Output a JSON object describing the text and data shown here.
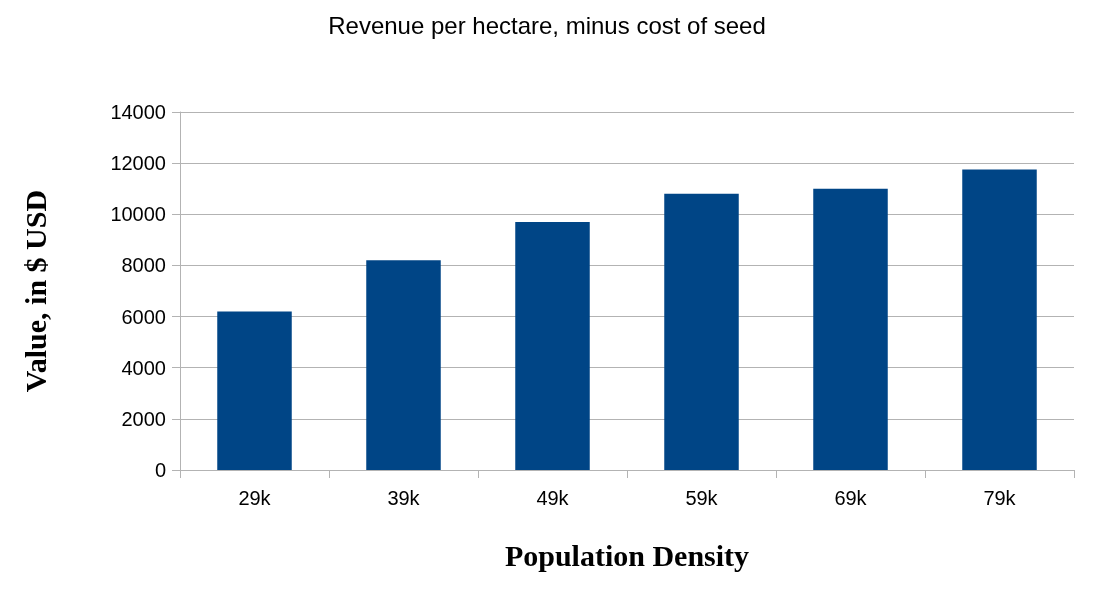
{
  "chart_data": {
    "type": "bar",
    "title": "Revenue per hectare, minus cost of seed",
    "xlabel": "Population Density",
    "ylabel": "Value, in $ USD",
    "categories": [
      "29k",
      "39k",
      "49k",
      "59k",
      "69k",
      "79k"
    ],
    "values": [
      6200,
      8200,
      9700,
      10800,
      11000,
      11750
    ],
    "color": "#004586",
    "ylim": [
      0,
      14000
    ],
    "yticks": [
      0,
      2000,
      4000,
      6000,
      8000,
      10000,
      12000,
      14000
    ],
    "grid": "y"
  }
}
